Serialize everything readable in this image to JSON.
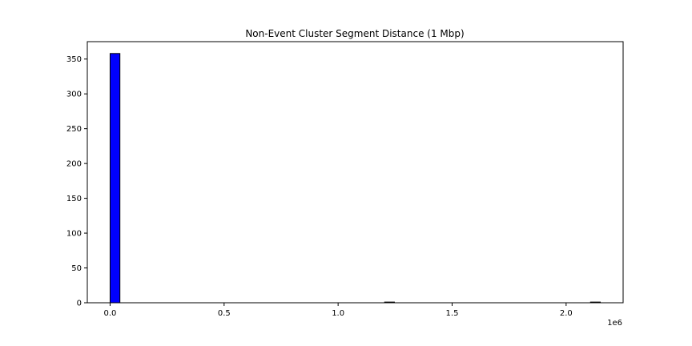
{
  "chart_data": {
    "type": "bar",
    "title": "Non-Event Cluster Segment Distance (1 Mbp)",
    "xlabel": "",
    "ylabel": "",
    "x_tick_labels": [
      "0.0",
      "0.5",
      "1.0",
      "1.5",
      "2.0"
    ],
    "x_ticks": [
      0,
      500000,
      1000000,
      1500000,
      2000000
    ],
    "x_offset_label": "1e6",
    "y_ticks": [
      0,
      50,
      100,
      150,
      200,
      250,
      300,
      350
    ],
    "xlim": [
      -100000,
      2250000
    ],
    "ylim": [
      0,
      375
    ],
    "bar_color": "#0000ff",
    "edge_color": "#000000",
    "bins": [
      {
        "start": 0,
        "end": 43000,
        "count": 358
      },
      {
        "start": 1204000,
        "end": 1247000,
        "count": 1
      },
      {
        "start": 2107000,
        "end": 2150000,
        "count": 1
      }
    ],
    "grid": false,
    "legend": "none"
  }
}
